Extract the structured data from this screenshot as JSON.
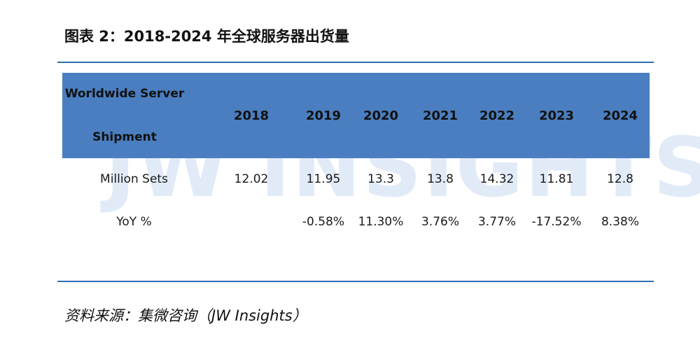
{
  "figure": {
    "title": "图表 2：2018-2024 年全球服务器出货量"
  },
  "watermark": "JW INSIGHTS",
  "table": {
    "header_label_line1": "Worldwide Server",
    "header_label_line2": "Shipment",
    "years": [
      "2018",
      "2019",
      "2020",
      "2021",
      "2022",
      "2023",
      "2024"
    ],
    "rows": [
      {
        "label": "Million Sets",
        "values": [
          "12.02",
          "11.95",
          "13.3",
          "13.8",
          "14.32",
          "11.81",
          "12.8"
        ]
      },
      {
        "label": "YoY %",
        "values": [
          "",
          "-0.58%",
          "11.30%",
          "3.76%",
          "3.77%",
          "-17.52%",
          "8.38%"
        ]
      }
    ]
  },
  "source": "资料来源：集微咨询（JW Insights）",
  "colors": {
    "header_bg": "#4a7ec0",
    "rule": "#2e6cb5",
    "watermark": "#c9dcf3"
  }
}
